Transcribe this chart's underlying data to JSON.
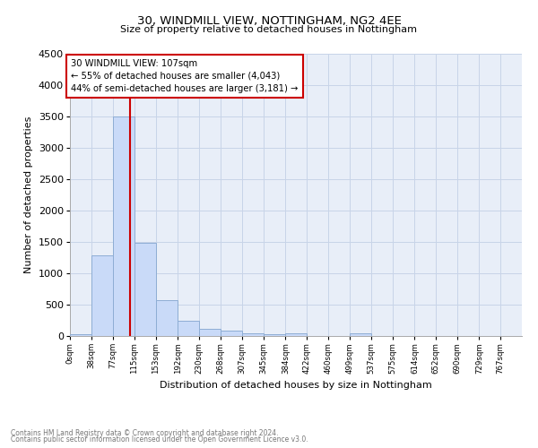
{
  "title": "30, WINDMILL VIEW, NOTTINGHAM, NG2 4EE",
  "subtitle": "Size of property relative to detached houses in Nottingham",
  "xlabel": "Distribution of detached houses by size in Nottingham",
  "ylabel": "Number of detached properties",
  "bar_values": [
    30,
    1280,
    3500,
    1480,
    570,
    250,
    120,
    80,
    40,
    30,
    50,
    0,
    0,
    40,
    0,
    0,
    0,
    0,
    0,
    0
  ],
  "bar_color": "#c9daf8",
  "bar_edge_color": "#8eadd4",
  "property_line_x": 107,
  "annotation_title": "30 WINDMILL VIEW: 107sqm",
  "annotation_line1": "← 55% of detached houses are smaller (4,043)",
  "annotation_line2": "44% of semi-detached houses are larger (3,181) →",
  "annotation_box_color": "#ffffff",
  "annotation_box_edge": "#cc0000",
  "vline_color": "#cc0000",
  "grid_color": "#c8d4e8",
  "background_color": "#e8eef8",
  "ylim": [
    0,
    4500
  ],
  "footer_line1": "Contains HM Land Registry data © Crown copyright and database right 2024.",
  "footer_line2": "Contains public sector information licensed under the Open Government Licence v3.0.",
  "bin_starts": [
    0,
    38,
    77,
    115,
    153,
    192,
    230,
    268,
    307,
    345,
    384,
    422,
    460,
    499,
    537,
    575,
    614,
    652,
    690,
    729
  ],
  "xtick_values": [
    0,
    38,
    77,
    115,
    153,
    192,
    230,
    268,
    307,
    345,
    384,
    422,
    460,
    499,
    537,
    575,
    614,
    652,
    690,
    729,
    767
  ],
  "bin_width": 38
}
